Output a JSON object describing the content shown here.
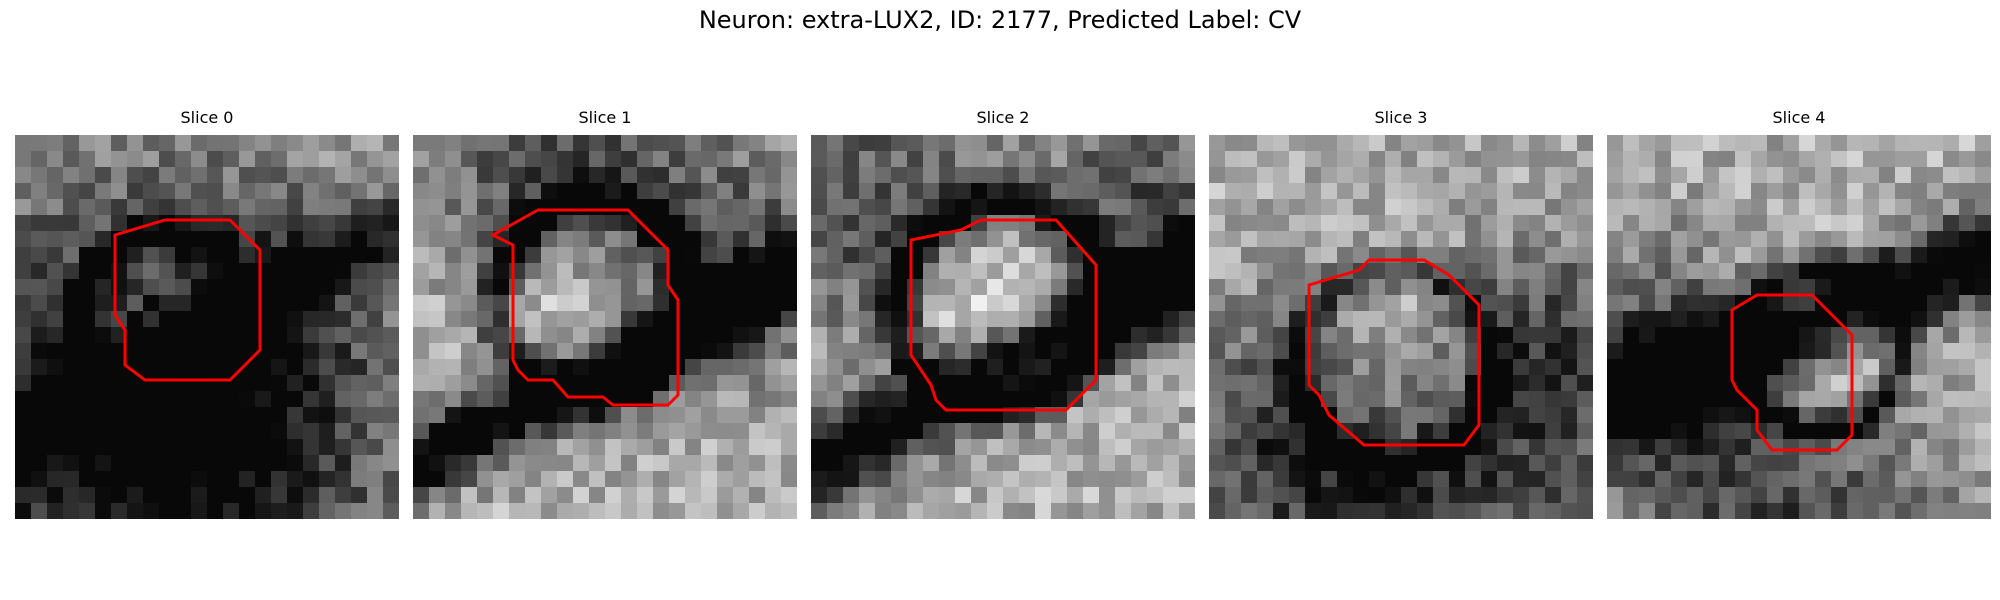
{
  "figure": {
    "title": "Neuron: extra-LUX2, ID: 2177, Predicted Label: CV"
  },
  "colors": {
    "contour": "#ff0000",
    "background": "#ffffff"
  },
  "slices": [
    {
      "title": "Slice 0"
    },
    {
      "title": "Slice 1"
    },
    {
      "title": "Slice 2"
    },
    {
      "title": "Slice 3"
    },
    {
      "title": "Slice 4"
    }
  ]
}
